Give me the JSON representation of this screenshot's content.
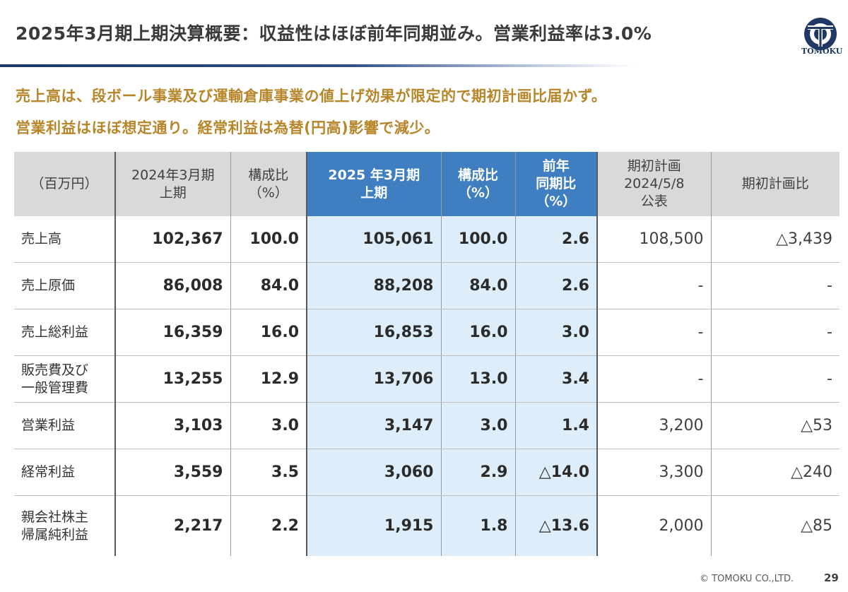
{
  "title": "2025年3月期上期決算概要：収益性はほぼ前年同期並み。営業利益率は3.0%",
  "logo_text": "TOMOKU",
  "lead": [
    "売上高は、段ボール事業及び運輸倉庫事業の値上げ効果が限定的で期初計画比届かず。",
    "営業利益はほぼ想定通り。経常利益は為替(円高)影響で減少。"
  ],
  "table": {
    "headers": [
      "（百万円）",
      "2024年3月期\n上期",
      "構成比\n（%）",
      "2025 年3月期\n上期",
      "構成比\n（%）",
      "前年\n同期比\n（%）",
      "期初計画\n2024/5/8\n公表",
      "期初計画比"
    ],
    "rows": [
      {
        "label": "売上高",
        "cells": [
          "102,367",
          "100.0",
          "105,061",
          "100.0",
          "2.6",
          "108,500",
          "△3,439"
        ]
      },
      {
        "label": "売上原価",
        "cells": [
          "86,008",
          "84.0",
          "88,208",
          "84.0",
          "2.6",
          "-",
          "-"
        ]
      },
      {
        "label": "売上総利益",
        "cells": [
          "16,359",
          "16.0",
          "16,853",
          "16.0",
          "3.0",
          "-",
          "-"
        ]
      },
      {
        "label": "販売費及び\n一般管理費",
        "cells": [
          "13,255",
          "12.9",
          "13,706",
          "13.0",
          "3.4",
          "-",
          "-"
        ]
      },
      {
        "label": "営業利益",
        "cells": [
          "3,103",
          "3.0",
          "3,147",
          "3.0",
          "1.4",
          "3,200",
          "△53"
        ]
      },
      {
        "label": "経常利益",
        "cells": [
          "3,559",
          "3.5",
          "3,060",
          "2.9",
          "△14.0",
          "3,300",
          "△240"
        ]
      },
      {
        "label": "親会社株主\n帰属純利益",
        "cells": [
          "2,217",
          "2.2",
          "1,915",
          "1.8",
          "△13.6",
          "2,000",
          "△85"
        ]
      }
    ]
  },
  "footer": {
    "copyright": "© TOMOKU CO.,LTD.",
    "page": "29"
  },
  "colors": {
    "accent": "#3f7fc1",
    "highlight_bg": "#ddeefa",
    "lead_text": "#b8862a",
    "brand": "#1f3864"
  }
}
